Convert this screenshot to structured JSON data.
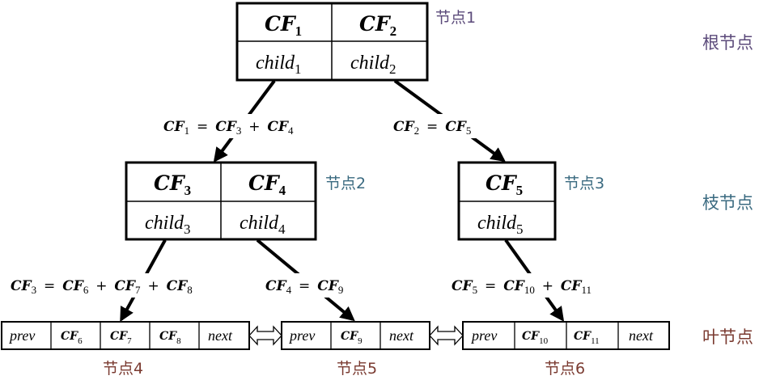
{
  "levels": {
    "root": "根节点",
    "branch": "枝节点",
    "leaf": "叶节点"
  },
  "node_labels": {
    "n1": "节点1",
    "n2": "节点2",
    "n3": "节点3",
    "n4": "节点4",
    "n5": "节点5",
    "n6": "节点6"
  },
  "text": {
    "cf": "CF",
    "child": "child",
    "prev": "prev",
    "next": "next",
    "eq": "=",
    "plus": "+"
  },
  "subscripts": {
    "n1": [
      "1",
      "2"
    ],
    "n2": [
      "3",
      "4"
    ],
    "n3": [
      "5"
    ],
    "n4": [
      "6",
      "7",
      "8"
    ],
    "n5": [
      "9"
    ],
    "n6": [
      "10",
      "11"
    ]
  },
  "equations": {
    "e1": {
      "lhs": "1",
      "rhs": [
        "3",
        "4"
      ]
    },
    "e2": {
      "lhs": "2",
      "rhs": [
        "5"
      ]
    },
    "e3": {
      "lhs": "3",
      "rhs": [
        "6",
        "7",
        "8"
      ]
    },
    "e4": {
      "lhs": "4",
      "rhs": [
        "9"
      ]
    },
    "e5": {
      "lhs": "5",
      "rhs": [
        "10",
        "11"
      ]
    }
  },
  "colors": {
    "root_label": "#5b4a7a",
    "branch_label": "#3a6a80",
    "leaf_label": "#7a3a30",
    "line": "#000000"
  }
}
